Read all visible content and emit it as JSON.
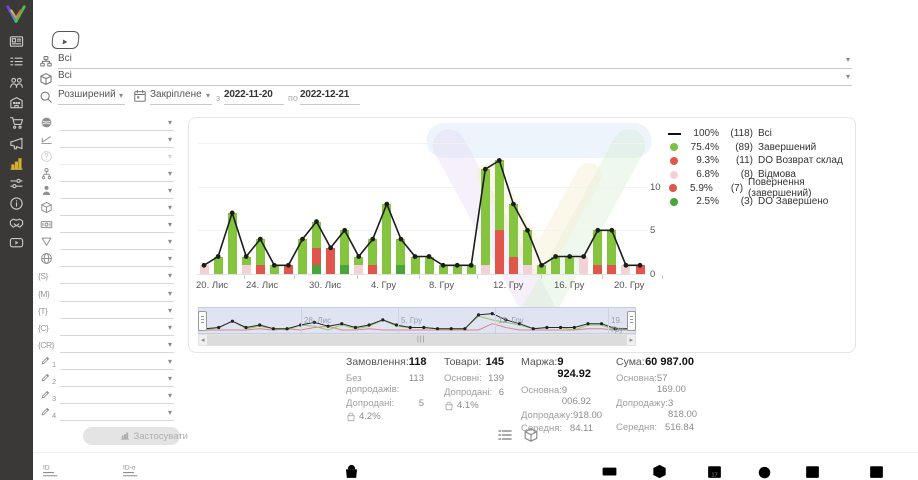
{
  "topbar": {
    "row1_value": "Всі",
    "row2_value": "Всі",
    "search_mode": "Розширений",
    "period_mode": "Закріплене",
    "from_label": "з",
    "date_from": "2022-11-20",
    "to_label": "по",
    "date_to": "2022-12-21"
  },
  "sidebar": {
    "items": [
      {
        "icon": "card"
      },
      {
        "icon": "list"
      },
      {
        "icon": "users"
      },
      {
        "icon": "building"
      },
      {
        "icon": "cart"
      },
      {
        "icon": "megaphone"
      },
      {
        "icon": "chart",
        "active": true
      },
      {
        "icon": "sliders"
      },
      {
        "icon": "info"
      },
      {
        "icon": "handshake"
      },
      {
        "icon": "video"
      }
    ]
  },
  "filters": {
    "apply_label": "Застосувати",
    "rows": [
      {
        "icon": "globe"
      },
      {
        "icon": "slope"
      },
      {
        "icon": "help",
        "disabled": true
      },
      {
        "icon": "tree"
      },
      {
        "icon": "person"
      },
      {
        "icon": "cube"
      },
      {
        "icon": "banknote"
      },
      {
        "icon": "funnel"
      },
      {
        "icon": "globe-grid"
      },
      {
        "tag": "{S}"
      },
      {
        "tag": "{M}"
      },
      {
        "tag": "{T}"
      },
      {
        "tag": "{C}"
      },
      {
        "tag": "{CR}"
      },
      {
        "icon": "pencil",
        "num": "1"
      },
      {
        "icon": "pencil",
        "num": "2"
      },
      {
        "icon": "pencil",
        "num": "3"
      },
      {
        "icon": "pencil",
        "num": "4"
      }
    ]
  },
  "legend": [
    {
      "swatch": "line",
      "pct": "100%",
      "count": "(118)",
      "label": "Всі"
    },
    {
      "swatch": "#7DC142",
      "pct": "75.4%",
      "count": "(89)",
      "label": "Завершений"
    },
    {
      "swatch": "#E0564B",
      "pct": "9.3%",
      "count": "(11)",
      "label": "DO Возврат склад"
    },
    {
      "swatch": "#F3D2D6",
      "pct": "6.8%",
      "count": "(8)",
      "label": "Відмова"
    },
    {
      "swatch": "#E0564B",
      "pct": "5.9%",
      "count": "(7)",
      "label": "Повернення (завершений)"
    },
    {
      "swatch": "#4AA43C",
      "pct": "2.5%",
      "count": "(3)",
      "label": "DO Завершено"
    }
  ],
  "chart_data": {
    "type": "stacked-bar-with-line",
    "date_start": "2022-11-20",
    "date_end": "2022-12-21",
    "ylim": [
      0,
      15
    ],
    "y_ticks": [
      0,
      5,
      10
    ],
    "x_tick_labels": [
      "20. Лис",
      "24. Лис",
      "30. Лис",
      "4. Гру",
      "8. Гру",
      "12. Гру",
      "16. Гру",
      "20. Гру"
    ],
    "mini_labels": [
      "28. Лис",
      "5. Гру",
      "12. Гру",
      "19. Гру"
    ],
    "colors": {
      "zavershenyi": "#85C43E",
      "do_vozvrat": "#E0564B",
      "vidmova": "#F3D2D6",
      "povernennia": "#E0564B",
      "do_zaversheno": "#4AA43C",
      "line": "#1c1c1c"
    },
    "totals": [
      1,
      2,
      7,
      2,
      4,
      1,
      1,
      4,
      6,
      3,
      5,
      2,
      4,
      8,
      4,
      2,
      2,
      1,
      1,
      1,
      12,
      13,
      8,
      5,
      1,
      2,
      2,
      2,
      5,
      5,
      1,
      1
    ],
    "bars": [
      [
        [
          "vidmova",
          1
        ]
      ],
      [
        [
          "zavershenyi",
          2
        ]
      ],
      [
        [
          "zavershenyi",
          7
        ]
      ],
      [
        [
          "vidmova",
          1
        ],
        [
          "zavershenyi",
          1
        ]
      ],
      [
        [
          "povernennia",
          1
        ],
        [
          "zavershenyi",
          3
        ]
      ],
      [
        [
          "zavershenyi",
          1
        ]
      ],
      [
        [
          "povernennia",
          1
        ]
      ],
      [
        [
          "zavershenyi",
          4
        ]
      ],
      [
        [
          "do_zaversheno",
          1
        ],
        [
          "do_vozvrat",
          2
        ],
        [
          "zavershenyi",
          3
        ]
      ],
      [
        [
          "do_vozvrat",
          3
        ]
      ],
      [
        [
          "do_zaversheno",
          1
        ],
        [
          "zavershenyi",
          4
        ]
      ],
      [
        [
          "vidmova",
          1
        ],
        [
          "zavershenyi",
          1
        ]
      ],
      [
        [
          "povernennia",
          1
        ],
        [
          "zavershenyi",
          3
        ]
      ],
      [
        [
          "zavershenyi",
          8
        ]
      ],
      [
        [
          "do_zaversheno",
          1
        ],
        [
          "zavershenyi",
          3
        ]
      ],
      [
        [
          "zavershenyi",
          2
        ]
      ],
      [
        [
          "zavershenyi",
          2
        ]
      ],
      [
        [
          "zavershenyi",
          1
        ]
      ],
      [
        [
          "zavershenyi",
          1
        ]
      ],
      [
        [
          "zavershenyi",
          1
        ]
      ],
      [
        [
          "vidmova",
          1
        ],
        [
          "zavershenyi",
          11
        ]
      ],
      [
        [
          "do_vozvrat",
          5
        ],
        [
          "zavershenyi",
          8
        ]
      ],
      [
        [
          "povernennia",
          2
        ],
        [
          "zavershenyi",
          6
        ]
      ],
      [
        [
          "vidmova",
          1
        ],
        [
          "zavershenyi",
          4
        ]
      ],
      [
        [
          "zavershenyi",
          1
        ]
      ],
      [
        [
          "zavershenyi",
          2
        ]
      ],
      [
        [
          "zavershenyi",
          2
        ]
      ],
      [
        [
          "vidmova",
          2
        ]
      ],
      [
        [
          "do_vozvrat",
          1
        ],
        [
          "zavershenyi",
          4
        ]
      ],
      [
        [
          "povernennia",
          1
        ],
        [
          "zavershenyi",
          4
        ]
      ],
      [
        [
          "vidmova",
          1
        ]
      ],
      [
        [
          "povernennia",
          1
        ]
      ]
    ]
  },
  "stats": {
    "columns": [
      {
        "title": "Замовлення:",
        "value": "118",
        "rows": [
          [
            "Без допродажів:",
            "113"
          ],
          [
            "Допродані:",
            "5"
          ]
        ],
        "rate": "4.2%"
      },
      {
        "title": "Товари:",
        "value": "145",
        "rows": [
          [
            "Основні:",
            "139"
          ],
          [
            "Допродані:",
            "6"
          ]
        ],
        "rate": "4.1%"
      },
      {
        "title": "Маржа:",
        "value": "9 924.92",
        "rows": [
          [
            "Основна:",
            "9 006.92"
          ],
          [
            "Допродажу:",
            "918.00"
          ],
          [
            "Середня:",
            "84.11"
          ]
        ]
      },
      {
        "title": "Сума:",
        "value": "60 987.00",
        "rows": [
          [
            "Основна:",
            "57 169.00"
          ],
          [
            "Допродажу:",
            "3 818.00"
          ],
          [
            "Середня:",
            "516.84"
          ]
        ]
      }
    ]
  },
  "toggles": [
    {
      "icon": "list-rows",
      "name": "orders-table-toggle"
    },
    {
      "icon": "cube",
      "name": "products-table-toggle"
    }
  ],
  "bottom_bar": {
    "items": [
      {
        "icon": "id-lines",
        "label": "ID"
      },
      {
        "icon": "id-lines",
        "label": "ID-o"
      },
      {
        "icon": "bag"
      },
      {
        "icon": "money"
      },
      {
        "icon": "cube"
      },
      {
        "icon": "calendar-num",
        "label": "17"
      },
      {
        "icon": "clock"
      },
      {
        "icon": "calendar-download"
      },
      {
        "icon": "calendar-edit"
      }
    ]
  }
}
